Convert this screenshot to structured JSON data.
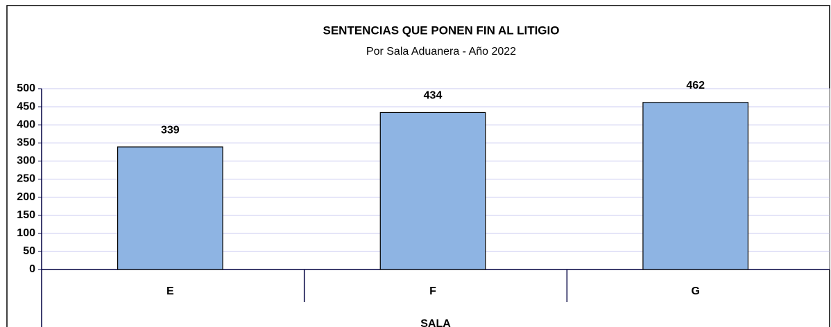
{
  "chart_data": {
    "type": "bar",
    "title": "SENTENCIAS QUE PONEN FIN AL LITIGIO",
    "subtitle": "Por Sala Aduanera - Año 2022",
    "x_label": "SALA",
    "categories": [
      "E",
      "F",
      "G"
    ],
    "values": [
      339,
      434,
      462
    ],
    "color": "#8eb4e3",
    "ylim": [
      0,
      500
    ],
    "yticks": [
      0,
      50,
      100,
      150,
      200,
      250,
      300,
      350,
      400,
      450,
      500
    ],
    "grid": true
  }
}
